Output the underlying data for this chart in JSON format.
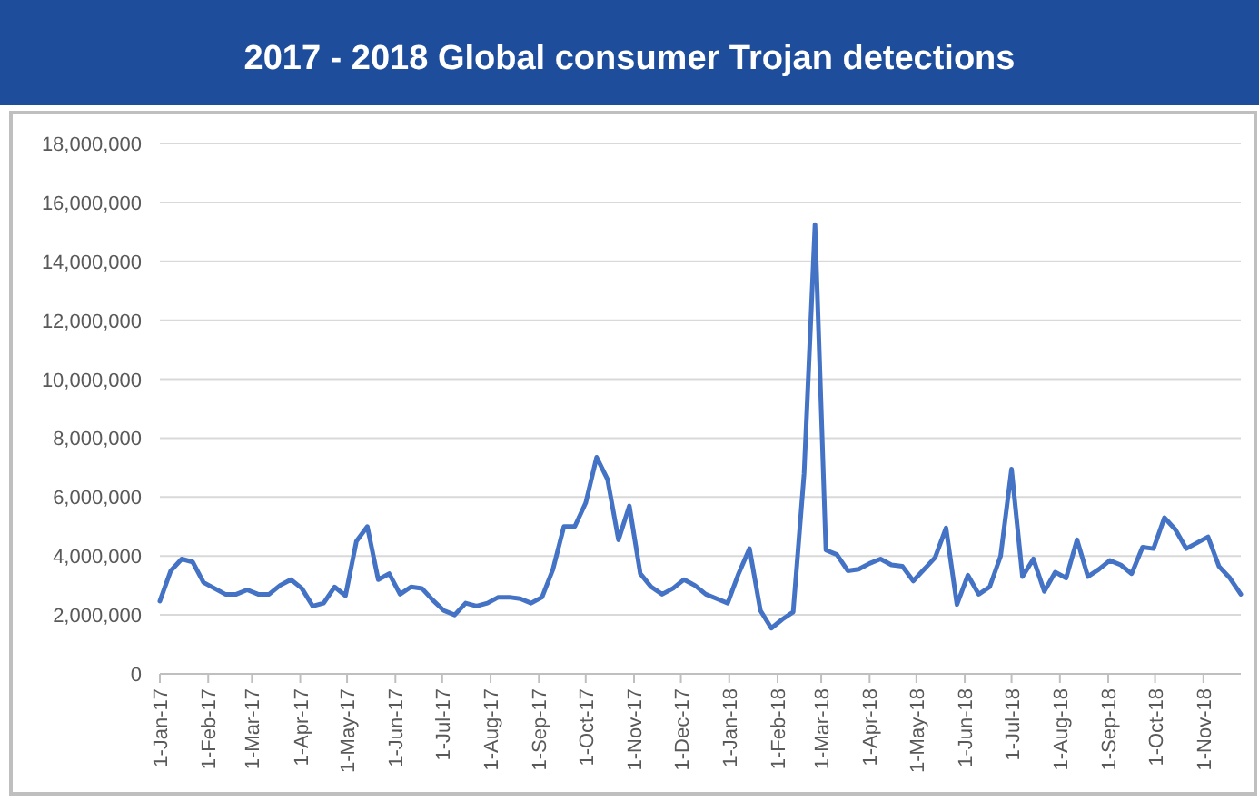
{
  "chart_data": {
    "type": "line",
    "title": "2017 - 2018 Global consumer Trojan detections",
    "x": [
      "2017-01-01",
      "2017-01-08",
      "2017-01-15",
      "2017-01-22",
      "2017-01-29",
      "2017-02-05",
      "2017-02-12",
      "2017-02-19",
      "2017-02-26",
      "2017-03-05",
      "2017-03-12",
      "2017-03-19",
      "2017-03-26",
      "2017-04-02",
      "2017-04-09",
      "2017-04-16",
      "2017-04-23",
      "2017-04-30",
      "2017-05-07",
      "2017-05-14",
      "2017-05-21",
      "2017-05-28",
      "2017-06-04",
      "2017-06-11",
      "2017-06-18",
      "2017-06-25",
      "2017-07-02",
      "2017-07-09",
      "2017-07-16",
      "2017-07-23",
      "2017-07-30",
      "2017-08-06",
      "2017-08-13",
      "2017-08-20",
      "2017-08-27",
      "2017-09-03",
      "2017-09-10",
      "2017-09-17",
      "2017-09-24",
      "2017-10-01",
      "2017-10-08",
      "2017-10-15",
      "2017-10-22",
      "2017-10-29",
      "2017-11-05",
      "2017-11-12",
      "2017-11-19",
      "2017-11-26",
      "2017-12-03",
      "2017-12-10",
      "2017-12-17",
      "2017-12-24",
      "2017-12-31",
      "2018-01-07",
      "2018-01-14",
      "2018-01-21",
      "2018-01-28",
      "2018-02-04",
      "2018-02-11",
      "2018-02-18",
      "2018-02-25",
      "2018-03-04",
      "2018-03-11",
      "2018-03-18",
      "2018-03-25",
      "2018-04-01",
      "2018-04-08",
      "2018-04-15",
      "2018-04-22",
      "2018-04-29",
      "2018-05-06",
      "2018-05-13",
      "2018-05-20",
      "2018-05-27",
      "2018-06-03",
      "2018-06-10",
      "2018-06-17",
      "2018-06-24",
      "2018-07-01",
      "2018-07-08",
      "2018-07-15",
      "2018-07-22",
      "2018-07-29",
      "2018-08-05",
      "2018-08-12",
      "2018-08-19",
      "2018-08-26",
      "2018-09-02",
      "2018-09-09",
      "2018-09-16",
      "2018-09-23",
      "2018-09-30",
      "2018-10-07",
      "2018-10-14",
      "2018-10-21",
      "2018-10-28",
      "2018-11-04",
      "2018-11-11",
      "2018-11-18",
      "2018-11-25"
    ],
    "series": [
      {
        "color": "#4472c4",
        "values": [
          2470000,
          3500000,
          3900000,
          3800000,
          3100000,
          2900000,
          2700000,
          2700000,
          2850000,
          2700000,
          2700000,
          3000000,
          3200000,
          2900000,
          2300000,
          2400000,
          2950000,
          2650000,
          4500000,
          5000000,
          3200000,
          3400000,
          2700000,
          2950000,
          2900000,
          2500000,
          2150000,
          2000000,
          2400000,
          2300000,
          2400000,
          2600000,
          2600000,
          2550000,
          2400000,
          2600000,
          3550000,
          5000000,
          5000000,
          5800000,
          7350000,
          6600000,
          4550000,
          5700000,
          3400000,
          2950000,
          2700000,
          2900000,
          3200000,
          3000000,
          2700000,
          2550000,
          2400000,
          3400000,
          4250000,
          2150000,
          1550000,
          1850000,
          2100000,
          6800000,
          15250000,
          4200000,
          4050000,
          3500000,
          3550000,
          3750000,
          3900000,
          3700000,
          3650000,
          3150000,
          3550000,
          3950000,
          4950000,
          2350000,
          3350000,
          2700000,
          2950000,
          4000000,
          6950000,
          3300000,
          3900000,
          2800000,
          3450000,
          3250000,
          4550000,
          3300000,
          3550000,
          3850000,
          3700000,
          3400000,
          4300000,
          4250000,
          5300000,
          4900000,
          4250000,
          4450000,
          4650000,
          3650000,
          3250000,
          2700000
        ]
      }
    ],
    "xlim": [
      "2017-01-01",
      "2018-11-25"
    ],
    "xticks": [
      {
        "value": "2017-01-01",
        "label": "1-Jan-17"
      },
      {
        "value": "2017-02-01",
        "label": "1-Feb-17"
      },
      {
        "value": "2017-03-01",
        "label": "1-Mar-17"
      },
      {
        "value": "2017-04-01",
        "label": "1-Apr-17"
      },
      {
        "value": "2017-05-01",
        "label": "1-May-17"
      },
      {
        "value": "2017-06-01",
        "label": "1-Jun-17"
      },
      {
        "value": "2017-07-01",
        "label": "1-Jul-17"
      },
      {
        "value": "2017-08-01",
        "label": "1-Aug-17"
      },
      {
        "value": "2017-09-01",
        "label": "1-Sep-17"
      },
      {
        "value": "2017-10-01",
        "label": "1-Oct-17"
      },
      {
        "value": "2017-11-01",
        "label": "1-Nov-17"
      },
      {
        "value": "2017-12-01",
        "label": "1-Dec-17"
      },
      {
        "value": "2018-01-01",
        "label": "1-Jan-18"
      },
      {
        "value": "2018-02-01",
        "label": "1-Feb-18"
      },
      {
        "value": "2018-03-01",
        "label": "1-Mar-18"
      },
      {
        "value": "2018-04-01",
        "label": "1-Apr-18"
      },
      {
        "value": "2018-05-01",
        "label": "1-May-18"
      },
      {
        "value": "2018-06-01",
        "label": "1-Jun-18"
      },
      {
        "value": "2018-07-01",
        "label": "1-Jul-18"
      },
      {
        "value": "2018-08-01",
        "label": "1-Aug-18"
      },
      {
        "value": "2018-09-01",
        "label": "1-Sep-18"
      },
      {
        "value": "2018-10-01",
        "label": "1-Oct-18"
      },
      {
        "value": "2018-11-01",
        "label": "1-Nov-18"
      }
    ],
    "ylim": [
      0,
      18000000
    ],
    "yticks": [
      {
        "value": 0,
        "label": "0"
      },
      {
        "value": 2000000,
        "label": "2,000,000"
      },
      {
        "value": 4000000,
        "label": "4,000,000"
      },
      {
        "value": 6000000,
        "label": "6,000,000"
      },
      {
        "value": 8000000,
        "label": "8,000,000"
      },
      {
        "value": 10000000,
        "label": "10,000,000"
      },
      {
        "value": 12000000,
        "label": "12,000,000"
      },
      {
        "value": 14000000,
        "label": "14,000,000"
      },
      {
        "value": 16000000,
        "label": "16,000,000"
      },
      {
        "value": 18000000,
        "label": "18,000,000"
      }
    ],
    "grid": "y",
    "marker": "none",
    "line_style": "solid"
  }
}
